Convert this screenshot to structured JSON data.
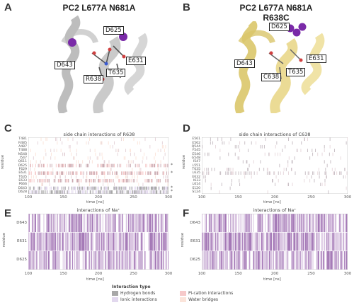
{
  "panels": {
    "A": {
      "letter": "A",
      "title": "PC2 L677A N681A",
      "residues": [
        "D625",
        "D643",
        "E631",
        "R638",
        "T635"
      ]
    },
    "B": {
      "letter": "B",
      "title_line1": "PC2 L677A N681A",
      "title_line2": "R638C",
      "residues": [
        "D625",
        "D643",
        "E631",
        "C638",
        "T635"
      ]
    },
    "C": {
      "letter": "C"
    },
    "D": {
      "letter": "D"
    },
    "E": {
      "letter": "E"
    },
    "F": {
      "letter": "F"
    }
  },
  "colors": {
    "hydrogen_bonds": "#a8a8a8",
    "ionic_interactions": "#e2d8ee",
    "pi_cation_interactions": "#f6c9c9",
    "water_bridges": "#fbe4da",
    "na_bar_light": "#d9c4e1",
    "na_bar_dark": "#a478b6",
    "helix_gray": "#b9b9b9",
    "helix_yellow": "#e6d27a",
    "sodium": "#7a2aa8"
  },
  "legend": {
    "title": "Interaction type",
    "items": [
      {
        "label": "Hydrogen bonds",
        "color_key": "hydrogen_bonds"
      },
      {
        "label": "Ionic interactions",
        "color_key": "ionic_interactions"
      },
      {
        "label": "Pi-cation interactions",
        "color_key": "pi_cation_interactions"
      },
      {
        "label": "Water bridges",
        "color_key": "water_bridges"
      }
    ]
  },
  "chart_data": [
    {
      "id": "C",
      "type": "heatmap",
      "title": "side chain interactions of R638",
      "xlabel": "time [ns]",
      "ylabel": "residue",
      "xlim": [
        100,
        300
      ],
      "x_ticks": [
        100,
        150,
        200,
        250,
        300
      ],
      "rows": [
        "T481",
        "R485",
        "A487",
        "T488",
        "N548",
        "I547",
        "Q611",
        "D625",
        "F629",
        "E631",
        "T635",
        "E633",
        "P666",
        "D643",
        "D628"
      ],
      "starred_rows": [
        "D625",
        "E631",
        "D643",
        "D628"
      ],
      "row_density": [
        0.05,
        0.05,
        0.05,
        0.08,
        0.05,
        0.05,
        0.08,
        0.35,
        0.05,
        0.45,
        0.1,
        0.35,
        0.05,
        0.55,
        0.55
      ]
    },
    {
      "id": "D",
      "type": "heatmap",
      "title": "side chain interactions of C638",
      "xlabel": "time [ns]",
      "ylabel": "residue",
      "xlim": [
        100,
        300
      ],
      "x_ticks": [
        100,
        150,
        200,
        250,
        300
      ],
      "rows": [
        "E561",
        "E562",
        "Q544",
        "F545",
        "E546",
        "G548",
        "I547",
        "L551",
        "T635",
        "L635",
        "E632",
        "I633",
        "L614",
        "S120",
        "S124"
      ],
      "row_density": [
        0.04,
        0.04,
        0.04,
        0.04,
        0.04,
        0.04,
        0.04,
        0.04,
        0.12,
        0.2,
        0.04,
        0.04,
        0.04,
        0.02,
        0.02
      ]
    },
    {
      "id": "E",
      "type": "heatmap",
      "title": "interactions of Na⁺",
      "xlabel": "time [ns]",
      "ylabel": "residue",
      "xlim": [
        100,
        300
      ],
      "x_ticks": [
        100,
        150,
        200,
        250,
        300
      ],
      "rows": [
        "D643",
        "E631",
        "D625"
      ],
      "row_density": [
        0.55,
        0.7,
        0.5
      ]
    },
    {
      "id": "F",
      "type": "heatmap",
      "title": "interactions of Na⁺",
      "xlabel": "time [ns]",
      "ylabel": "residue",
      "xlim": [
        100,
        300
      ],
      "x_ticks": [
        100,
        150,
        200,
        250,
        300
      ],
      "rows": [
        "D643",
        "E631",
        "D625"
      ],
      "row_density": [
        0.55,
        0.75,
        0.6
      ]
    }
  ]
}
